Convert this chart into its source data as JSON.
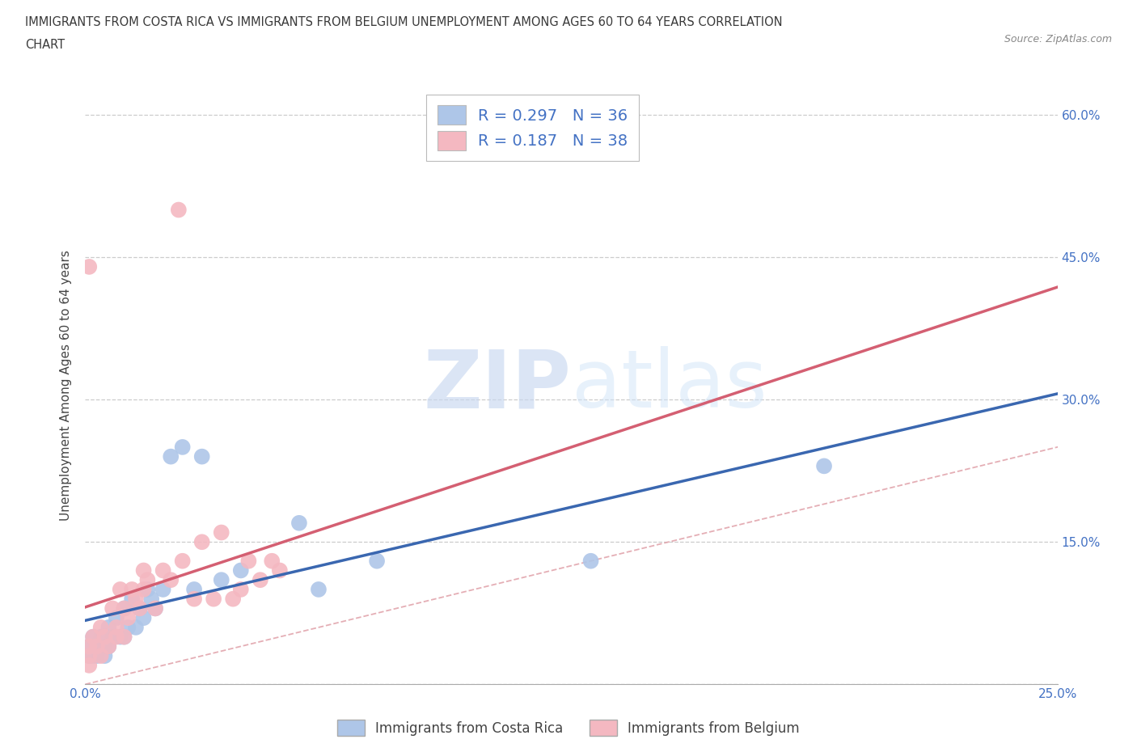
{
  "title_line1": "IMMIGRANTS FROM COSTA RICA VS IMMIGRANTS FROM BELGIUM UNEMPLOYMENT AMONG AGES 60 TO 64 YEARS CORRELATION",
  "title_line2": "CHART",
  "source": "Source: ZipAtlas.com",
  "ylabel": "Unemployment Among Ages 60 to 64 years",
  "xlim": [
    0.0,
    0.25
  ],
  "ylim": [
    0.0,
    0.63
  ],
  "xticks": [
    0.0,
    0.05,
    0.1,
    0.15,
    0.2,
    0.25
  ],
  "xtick_labels": [
    "0.0%",
    "",
    "",
    "",
    "",
    "25.0%"
  ],
  "yticks": [
    0.0,
    0.15,
    0.3,
    0.45,
    0.6
  ],
  "ytick_labels_right": [
    "",
    "15.0%",
    "30.0%",
    "45.0%",
    "60.0%"
  ],
  "costa_rica_color": "#aec6e8",
  "costa_rica_line_color": "#3a67b0",
  "belgium_color": "#f4b8c1",
  "belgium_line_color": "#d45f72",
  "diagonal_color": "#e0a0a8",
  "watermark_zip": "ZIP",
  "watermark_atlas": "atlas",
  "legend_R_costa_rica": "0.297",
  "legend_N_costa_rica": "36",
  "legend_R_belgium": "0.187",
  "legend_N_belgium": "38",
  "costa_rica_x": [
    0.001,
    0.001,
    0.002,
    0.002,
    0.003,
    0.003,
    0.004,
    0.005,
    0.005,
    0.006,
    0.006,
    0.007,
    0.008,
    0.009,
    0.01,
    0.01,
    0.011,
    0.012,
    0.013,
    0.014,
    0.015,
    0.016,
    0.017,
    0.018,
    0.02,
    0.022,
    0.025,
    0.028,
    0.03,
    0.035,
    0.04,
    0.055,
    0.06,
    0.075,
    0.13,
    0.19
  ],
  "costa_rica_y": [
    0.04,
    0.03,
    0.05,
    0.03,
    0.04,
    0.03,
    0.05,
    0.04,
    0.03,
    0.06,
    0.04,
    0.05,
    0.07,
    0.05,
    0.08,
    0.05,
    0.06,
    0.09,
    0.06,
    0.08,
    0.07,
    0.1,
    0.09,
    0.08,
    0.1,
    0.24,
    0.25,
    0.1,
    0.24,
    0.11,
    0.12,
    0.17,
    0.1,
    0.13,
    0.13,
    0.23
  ],
  "belgium_x": [
    0.001,
    0.001,
    0.001,
    0.001,
    0.002,
    0.003,
    0.004,
    0.004,
    0.005,
    0.006,
    0.007,
    0.008,
    0.008,
    0.009,
    0.01,
    0.01,
    0.011,
    0.012,
    0.013,
    0.014,
    0.015,
    0.015,
    0.016,
    0.018,
    0.02,
    0.022,
    0.024,
    0.025,
    0.028,
    0.03,
    0.033,
    0.035,
    0.038,
    0.04,
    0.042,
    0.045,
    0.048,
    0.05
  ],
  "belgium_y": [
    0.44,
    0.04,
    0.03,
    0.02,
    0.05,
    0.04,
    0.03,
    0.06,
    0.05,
    0.04,
    0.08,
    0.06,
    0.05,
    0.1,
    0.08,
    0.05,
    0.07,
    0.1,
    0.09,
    0.08,
    0.12,
    0.1,
    0.11,
    0.08,
    0.12,
    0.11,
    0.5,
    0.13,
    0.09,
    0.15,
    0.09,
    0.16,
    0.09,
    0.1,
    0.13,
    0.11,
    0.13,
    0.12
  ]
}
